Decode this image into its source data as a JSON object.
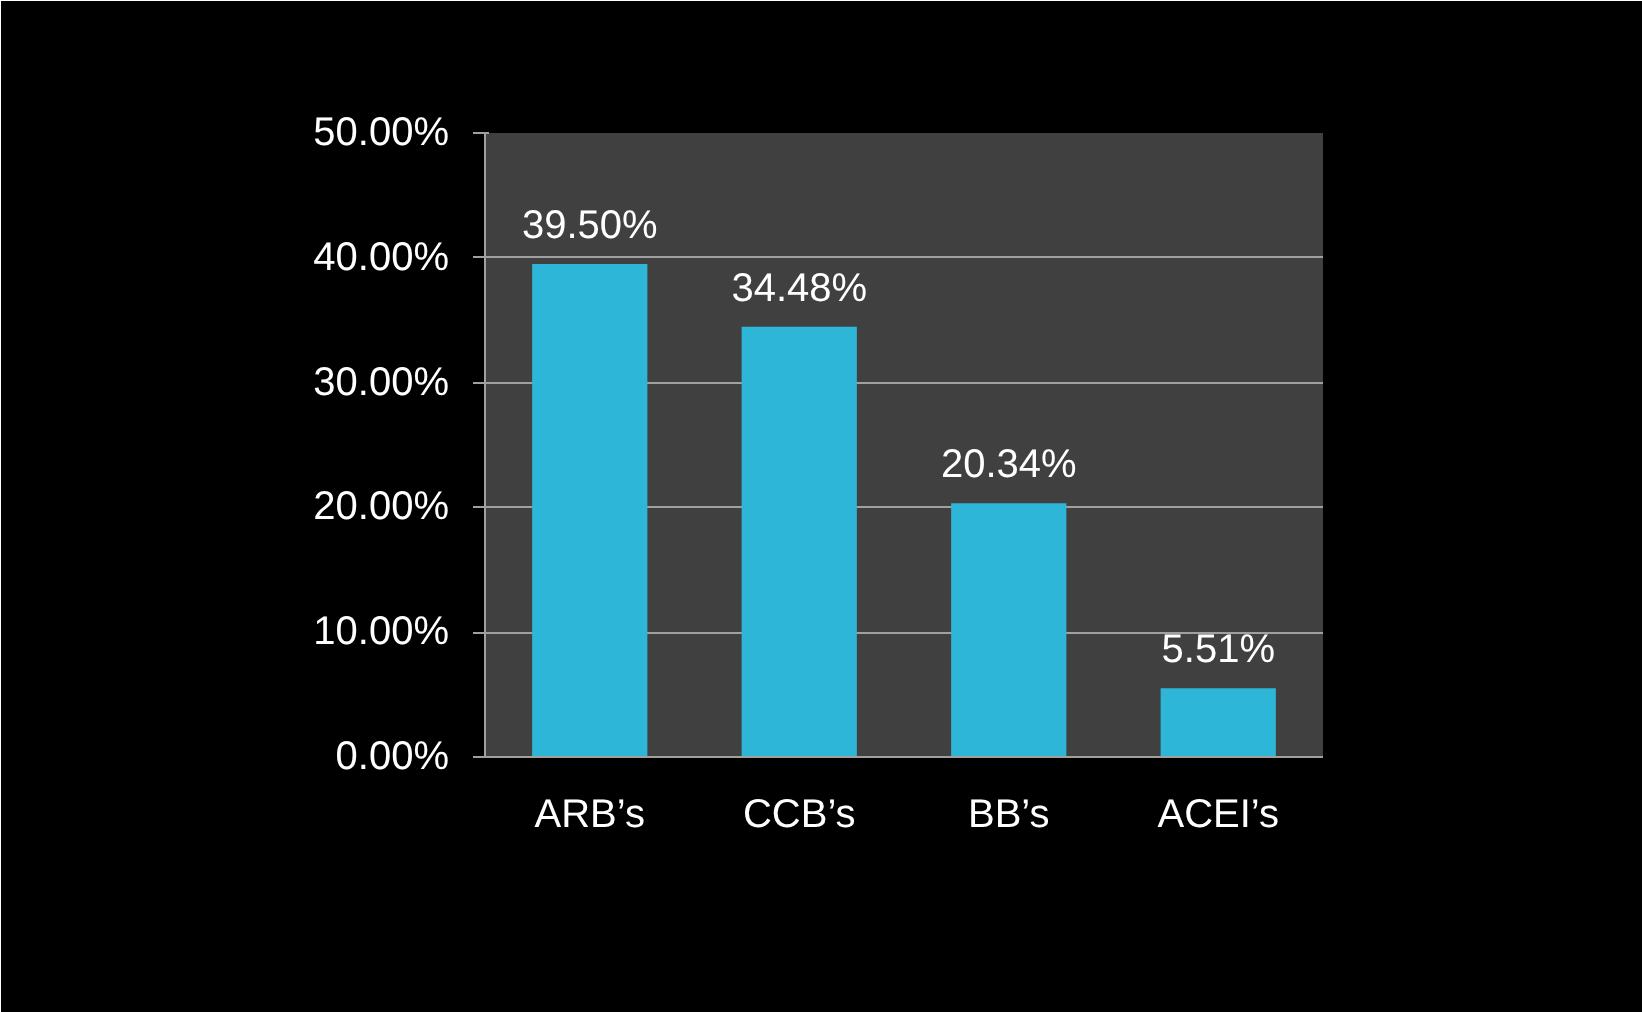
{
  "chart_data": {
    "type": "bar",
    "categories": [
      "ARB’s",
      "CCB’s",
      "BB’s",
      "ACEI’s"
    ],
    "values": [
      39.5,
      34.48,
      20.34,
      5.51
    ],
    "color": "#2eb6d8",
    "value_labels": [
      "39.50%",
      "34.48%",
      "20.34%",
      "5.51%"
    ],
    "ylim": [
      0,
      50
    ],
    "yticks": [
      {
        "value": 0,
        "label": "0.00%"
      },
      {
        "value": 10,
        "label": "10.00%"
      },
      {
        "value": 20,
        "label": "20.00%"
      },
      {
        "value": 30,
        "label": "30.00%"
      },
      {
        "value": 40,
        "label": "40.00%"
      },
      {
        "value": 50,
        "label": "50.00%"
      }
    ],
    "grid": "y"
  }
}
